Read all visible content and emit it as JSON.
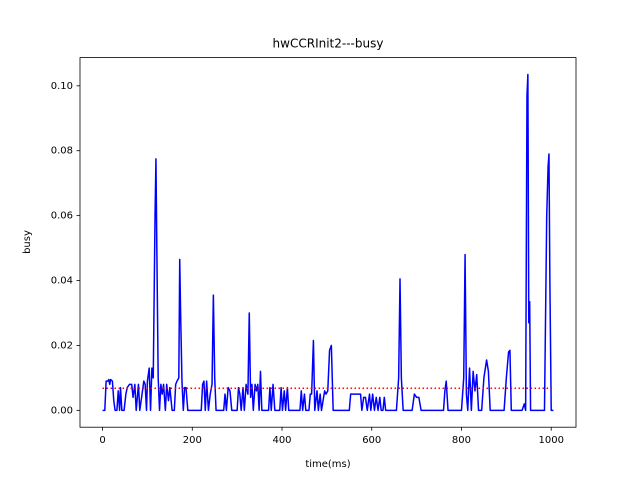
{
  "chart_data": {
    "type": "line",
    "title": "hwCCRInit2---busy",
    "xlabel": "time(ms)",
    "ylabel": "busy",
    "xlim": [
      -50.25,
      1055.25
    ],
    "ylim": [
      -0.0052,
      0.1087
    ],
    "xticks": [
      0,
      200,
      400,
      600,
      800,
      1000
    ],
    "yticks": [
      {
        "value": 0,
        "label": "0.00"
      },
      0.02,
      0.04,
      0.06,
      0.08,
      {
        "value": 0.1,
        "label": "0.10"
      }
    ],
    "series": [
      {
        "color": "#0000ff",
        "style": "solid",
        "x": [
          0,
          5,
          8,
          12,
          14,
          16,
          18,
          22,
          25,
          28,
          32,
          35,
          38,
          40,
          43,
          48,
          52,
          55,
          60,
          65,
          68,
          72,
          75,
          80,
          83,
          88,
          92,
          95,
          98,
          100,
          104,
          107,
          110,
          113,
          117,
          119,
          121,
          124,
          127,
          130,
          133,
          136,
          140,
          143,
          147,
          150,
          155,
          160,
          163,
          166,
          170,
          172,
          174,
          177,
          180,
          183,
          186,
          190,
          220,
          223,
          226,
          229,
          232,
          236,
          240,
          244,
          247,
          250,
          253,
          270,
          273,
          276,
          280,
          284,
          288,
          300,
          303,
          306,
          309,
          313,
          316,
          320,
          324,
          327,
          330,
          333,
          336,
          340,
          343,
          346,
          349,
          352,
          355,
          370,
          373,
          376,
          380,
          384,
          395,
          398,
          401,
          405,
          408,
          412,
          415,
          440,
          443,
          446,
          450,
          453,
          460,
          463,
          466,
          470,
          473,
          478,
          481,
          485,
          488,
          495,
          498,
          502,
          506,
          510,
          514,
          550,
          553,
          575,
          578,
          582,
          586,
          590,
          595,
          598,
          602,
          606,
          610,
          614,
          618,
          621,
          625,
          628,
          631,
          655,
          660,
          663,
          666,
          670,
          690,
          695,
          700,
          705,
          710,
          760,
          763,
          766,
          770,
          800,
          805,
          808,
          811,
          814,
          818,
          822,
          826,
          830,
          834,
          838,
          845,
          850,
          856,
          860,
          864,
          895,
          900,
          905,
          908,
          911,
          935,
          940,
          943,
          946,
          948,
          950,
          952,
          954,
          985,
          990,
          993,
          995,
          997,
          1000,
          1005
        ],
        "values": [
          0,
          0,
          0.009,
          0.009,
          0.0095,
          0.008,
          0.0095,
          0.009,
          0.003,
          0,
          0,
          0.006,
          0,
          0.007,
          0,
          0,
          0.005,
          0.007,
          0.008,
          0.008,
          0.004,
          0.008,
          0,
          0.008,
          0,
          0.005,
          0.009,
          0.008,
          0,
          0.009,
          0.013,
          0,
          0.013,
          0.01,
          0.06,
          0.0775,
          0.05,
          0.01,
          0,
          0.008,
          0.005,
          0.008,
          0,
          0.008,
          0.003,
          0.007,
          0,
          0,
          0.008,
          0.009,
          0.01,
          0.0465,
          0.03,
          0.009,
          0,
          0.007,
          0.007,
          0,
          0,
          0.008,
          0.009,
          0,
          0.009,
          0,
          0.005,
          0.008,
          0.0355,
          0.01,
          0,
          0,
          0.005,
          0,
          0.007,
          0.006,
          0,
          0,
          0.007,
          0.005,
          0,
          0.007,
          0,
          0.008,
          0.005,
          0.03,
          0.004,
          0.008,
          0,
          0.008,
          0.006,
          0.008,
          0,
          0.012,
          0,
          0,
          0.007,
          0,
          0.008,
          0,
          0,
          0.007,
          0,
          0.006,
          0,
          0.007,
          0,
          0,
          0.006,
          0,
          0.005,
          0,
          0,
          0.005,
          0.005,
          0.0215,
          0,
          0.006,
          0,
          0.005,
          0,
          0.006,
          0.005,
          0.006,
          0.0185,
          0.02,
          0,
          0,
          0.005,
          0.005,
          0,
          0.004,
          0.004,
          0,
          0.005,
          0,
          0.005,
          0,
          0.004,
          0,
          0.004,
          0,
          0,
          0.004,
          0,
          0,
          0.01,
          0.0405,
          0.01,
          0,
          0,
          0.005,
          0.004,
          0.004,
          0,
          0,
          0.006,
          0.009,
          0,
          0,
          0.01,
          0.048,
          0.005,
          0,
          0.013,
          0,
          0.012,
          0.006,
          0.011,
          0,
          0,
          0.01,
          0.0155,
          0.012,
          0,
          0,
          0.01,
          0.018,
          0.0185,
          0,
          0,
          0.002,
          0,
          0.097,
          0.1035,
          0.027,
          0.0335,
          0,
          0,
          0.06,
          0.075,
          0.079,
          0.04,
          0,
          0
        ]
      },
      {
        "color": "#ff0000",
        "style": "dotted",
        "x": [
          0,
          1005
        ],
        "values": [
          0.0068,
          0.0068
        ]
      }
    ]
  }
}
